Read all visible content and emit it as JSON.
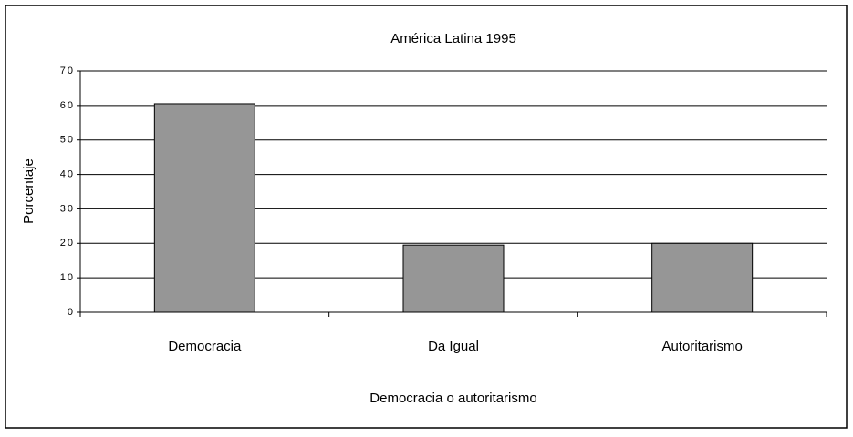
{
  "chart_data": {
    "type": "bar",
    "title": "América Latina 1995",
    "categories": [
      "Democracia",
      "Da Igual",
      "Autoritarismo"
    ],
    "values": [
      60.5,
      19.5,
      20
    ],
    "color": "#969696",
    "xlabel": "Democracia o autoritarismo",
    "ylabel": "Porcentaje",
    "ylim": [
      0,
      70
    ],
    "yticks": [
      0,
      10,
      20,
      30,
      40,
      50,
      60,
      70
    ],
    "grid": true
  }
}
